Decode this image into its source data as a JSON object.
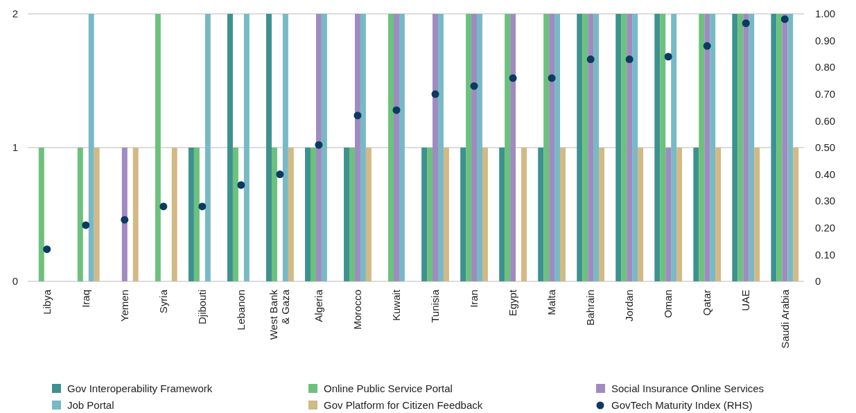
{
  "chart_data": {
    "type": "bar",
    "categories": [
      "Libya",
      "Iraq",
      "Yemen",
      "Syria",
      "Djibouti",
      "Lebanon",
      "West Bank & Gaza",
      "Algeria",
      "Morocco",
      "Kuwait",
      "Tunisia",
      "Iran",
      "Egypt",
      "Malta",
      "Bahrain",
      "Jordan",
      "Oman",
      "Qatar",
      "UAE",
      "Saudi Arabia"
    ],
    "series": [
      {
        "name": "Gov Interoperability Framework",
        "color": "#3d918f",
        "values": [
          0,
          0,
          0,
          0,
          1,
          2,
          2,
          1,
          1,
          0,
          1,
          1,
          1,
          1,
          2,
          2,
          2,
          1,
          2,
          2
        ]
      },
      {
        "name": "Online Public Service Portal",
        "color": "#6cc17d",
        "values": [
          1,
          1,
          0,
          2,
          1,
          1,
          1,
          1,
          1,
          2,
          1,
          2,
          2,
          2,
          2,
          2,
          2,
          2,
          2,
          2
        ]
      },
      {
        "name": "Social Insurance Online Services",
        "color": "#a08bc0",
        "values": [
          0,
          0,
          1,
          0,
          0,
          0,
          0,
          2,
          2,
          2,
          2,
          2,
          2,
          2,
          2,
          2,
          1,
          2,
          2,
          2
        ]
      },
      {
        "name": "Job Portal",
        "color": "#78b9c6",
        "values": [
          0,
          2,
          0,
          0,
          2,
          2,
          2,
          2,
          2,
          2,
          2,
          2,
          0,
          2,
          2,
          2,
          2,
          2,
          2,
          2
        ]
      },
      {
        "name": "Gov Platform for Citizen Feedback",
        "color": "#d2b985",
        "values": [
          0,
          1,
          1,
          1,
          0,
          0,
          1,
          0,
          1,
          0,
          1,
          1,
          1,
          1,
          1,
          1,
          1,
          1,
          1,
          1
        ]
      },
      {
        "name": "GovTech Maturity Index (RHS)",
        "type": "scatter",
        "axis": "y2",
        "marker": "circle",
        "color": "#0b3a63",
        "values": [
          0.12,
          0.21,
          0.23,
          0.28,
          0.28,
          0.36,
          0.4,
          0.51,
          0.62,
          0.64,
          0.7,
          0.73,
          0.76,
          0.76,
          0.83,
          0.83,
          0.84,
          0.88,
          0.965,
          0.98
        ]
      }
    ],
    "ylim": [
      0,
      2
    ],
    "yticks": [
      0,
      1,
      2
    ],
    "y2lim": [
      0,
      1
    ],
    "y2ticks": [
      {
        "value": 0,
        "label": "0"
      },
      {
        "value": 0.1,
        "label": "0.10"
      },
      {
        "value": 0.2,
        "label": "0.20"
      },
      {
        "value": 0.3,
        "label": "0.30"
      },
      {
        "value": 0.4,
        "label": "0.40"
      },
      {
        "value": 0.5,
        "label": "0.50"
      },
      {
        "value": 0.6,
        "label": "0.60"
      },
      {
        "value": 0.7,
        "label": "0.70"
      },
      {
        "value": 0.8,
        "label": "0.80"
      },
      {
        "value": 0.9,
        "label": "0.90"
      },
      {
        "value": 1,
        "label": "1.00"
      }
    ],
    "grid": "y",
    "legend": "bottom"
  }
}
